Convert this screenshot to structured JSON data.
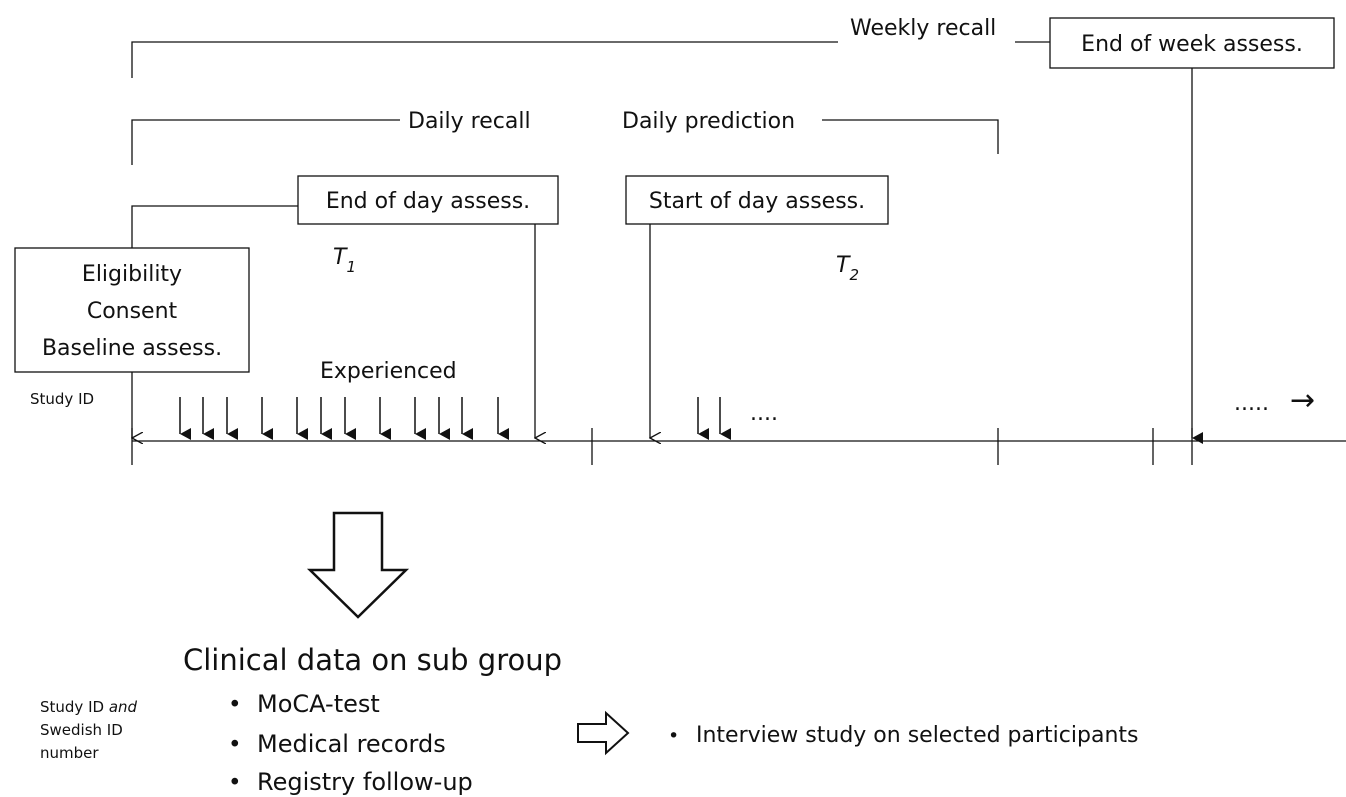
{
  "timeline": {
    "weekly_recall": "Weekly recall",
    "end_of_week": "End of week assess.",
    "daily_recall": "Daily recall",
    "daily_prediction": "Daily prediction",
    "end_of_day": "End of day assess.",
    "start_of_day": "Start of day assess.",
    "t1": "T",
    "t1_sub": "1",
    "t2": "T",
    "t2_sub": "2",
    "baseline_lines": [
      "Eligibility",
      "Consent",
      "Baseline  assess."
    ],
    "experienced": "Experienced",
    "study_id": "Study ID",
    "ellipsis_day2": "....",
    "ellipsis_end": ".....",
    "arrow_right": "→"
  },
  "clinical": {
    "title": "Clinical data on sub group",
    "items": [
      "MoCA-test",
      "Medical records",
      "Registry follow-up"
    ],
    "id_note_a": "Study ID ",
    "id_note_and": "and",
    "id_note_b": "Swedish ID",
    "id_note_c": "number",
    "interview": "Interview study on selected participants",
    "bullet": "•"
  }
}
